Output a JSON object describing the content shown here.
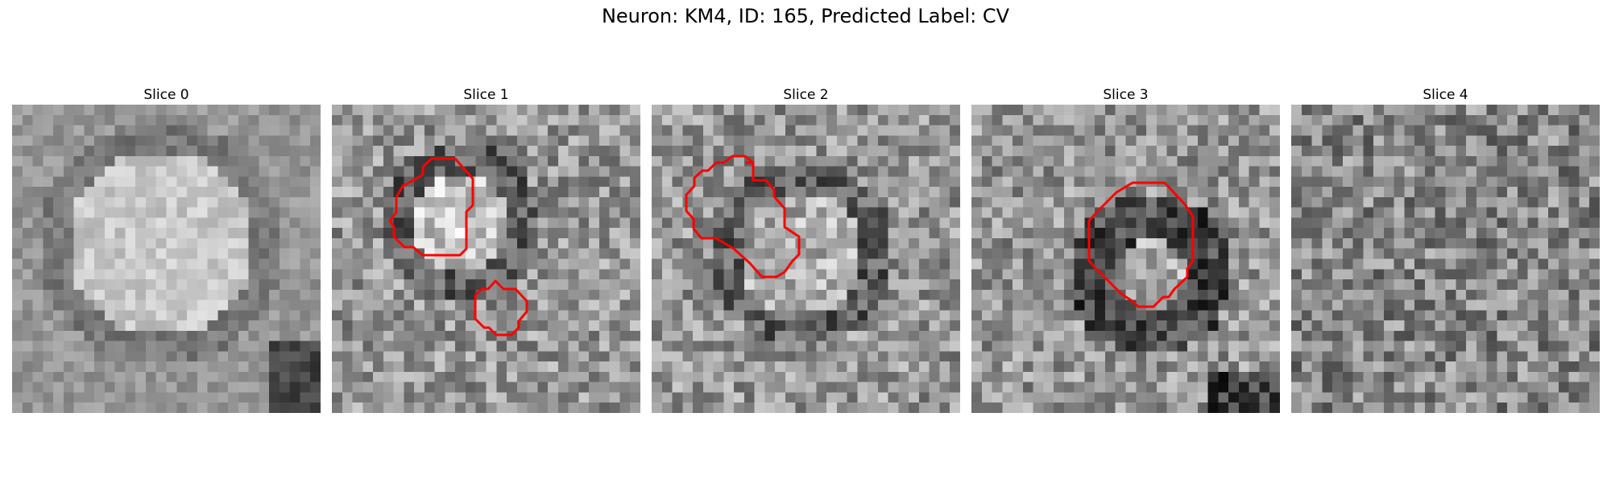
{
  "figure": {
    "title": "Neuron: KM4, ID: 165, Predicted Label: CV"
  },
  "colors": {
    "contour": "#ff0000",
    "background": "#ffffff"
  },
  "slices": [
    {
      "title": "Slice 0"
    },
    {
      "title": "Slice 1"
    },
    {
      "title": "Slice 2"
    },
    {
      "title": "Slice 3"
    },
    {
      "title": "Slice 4"
    }
  ]
}
